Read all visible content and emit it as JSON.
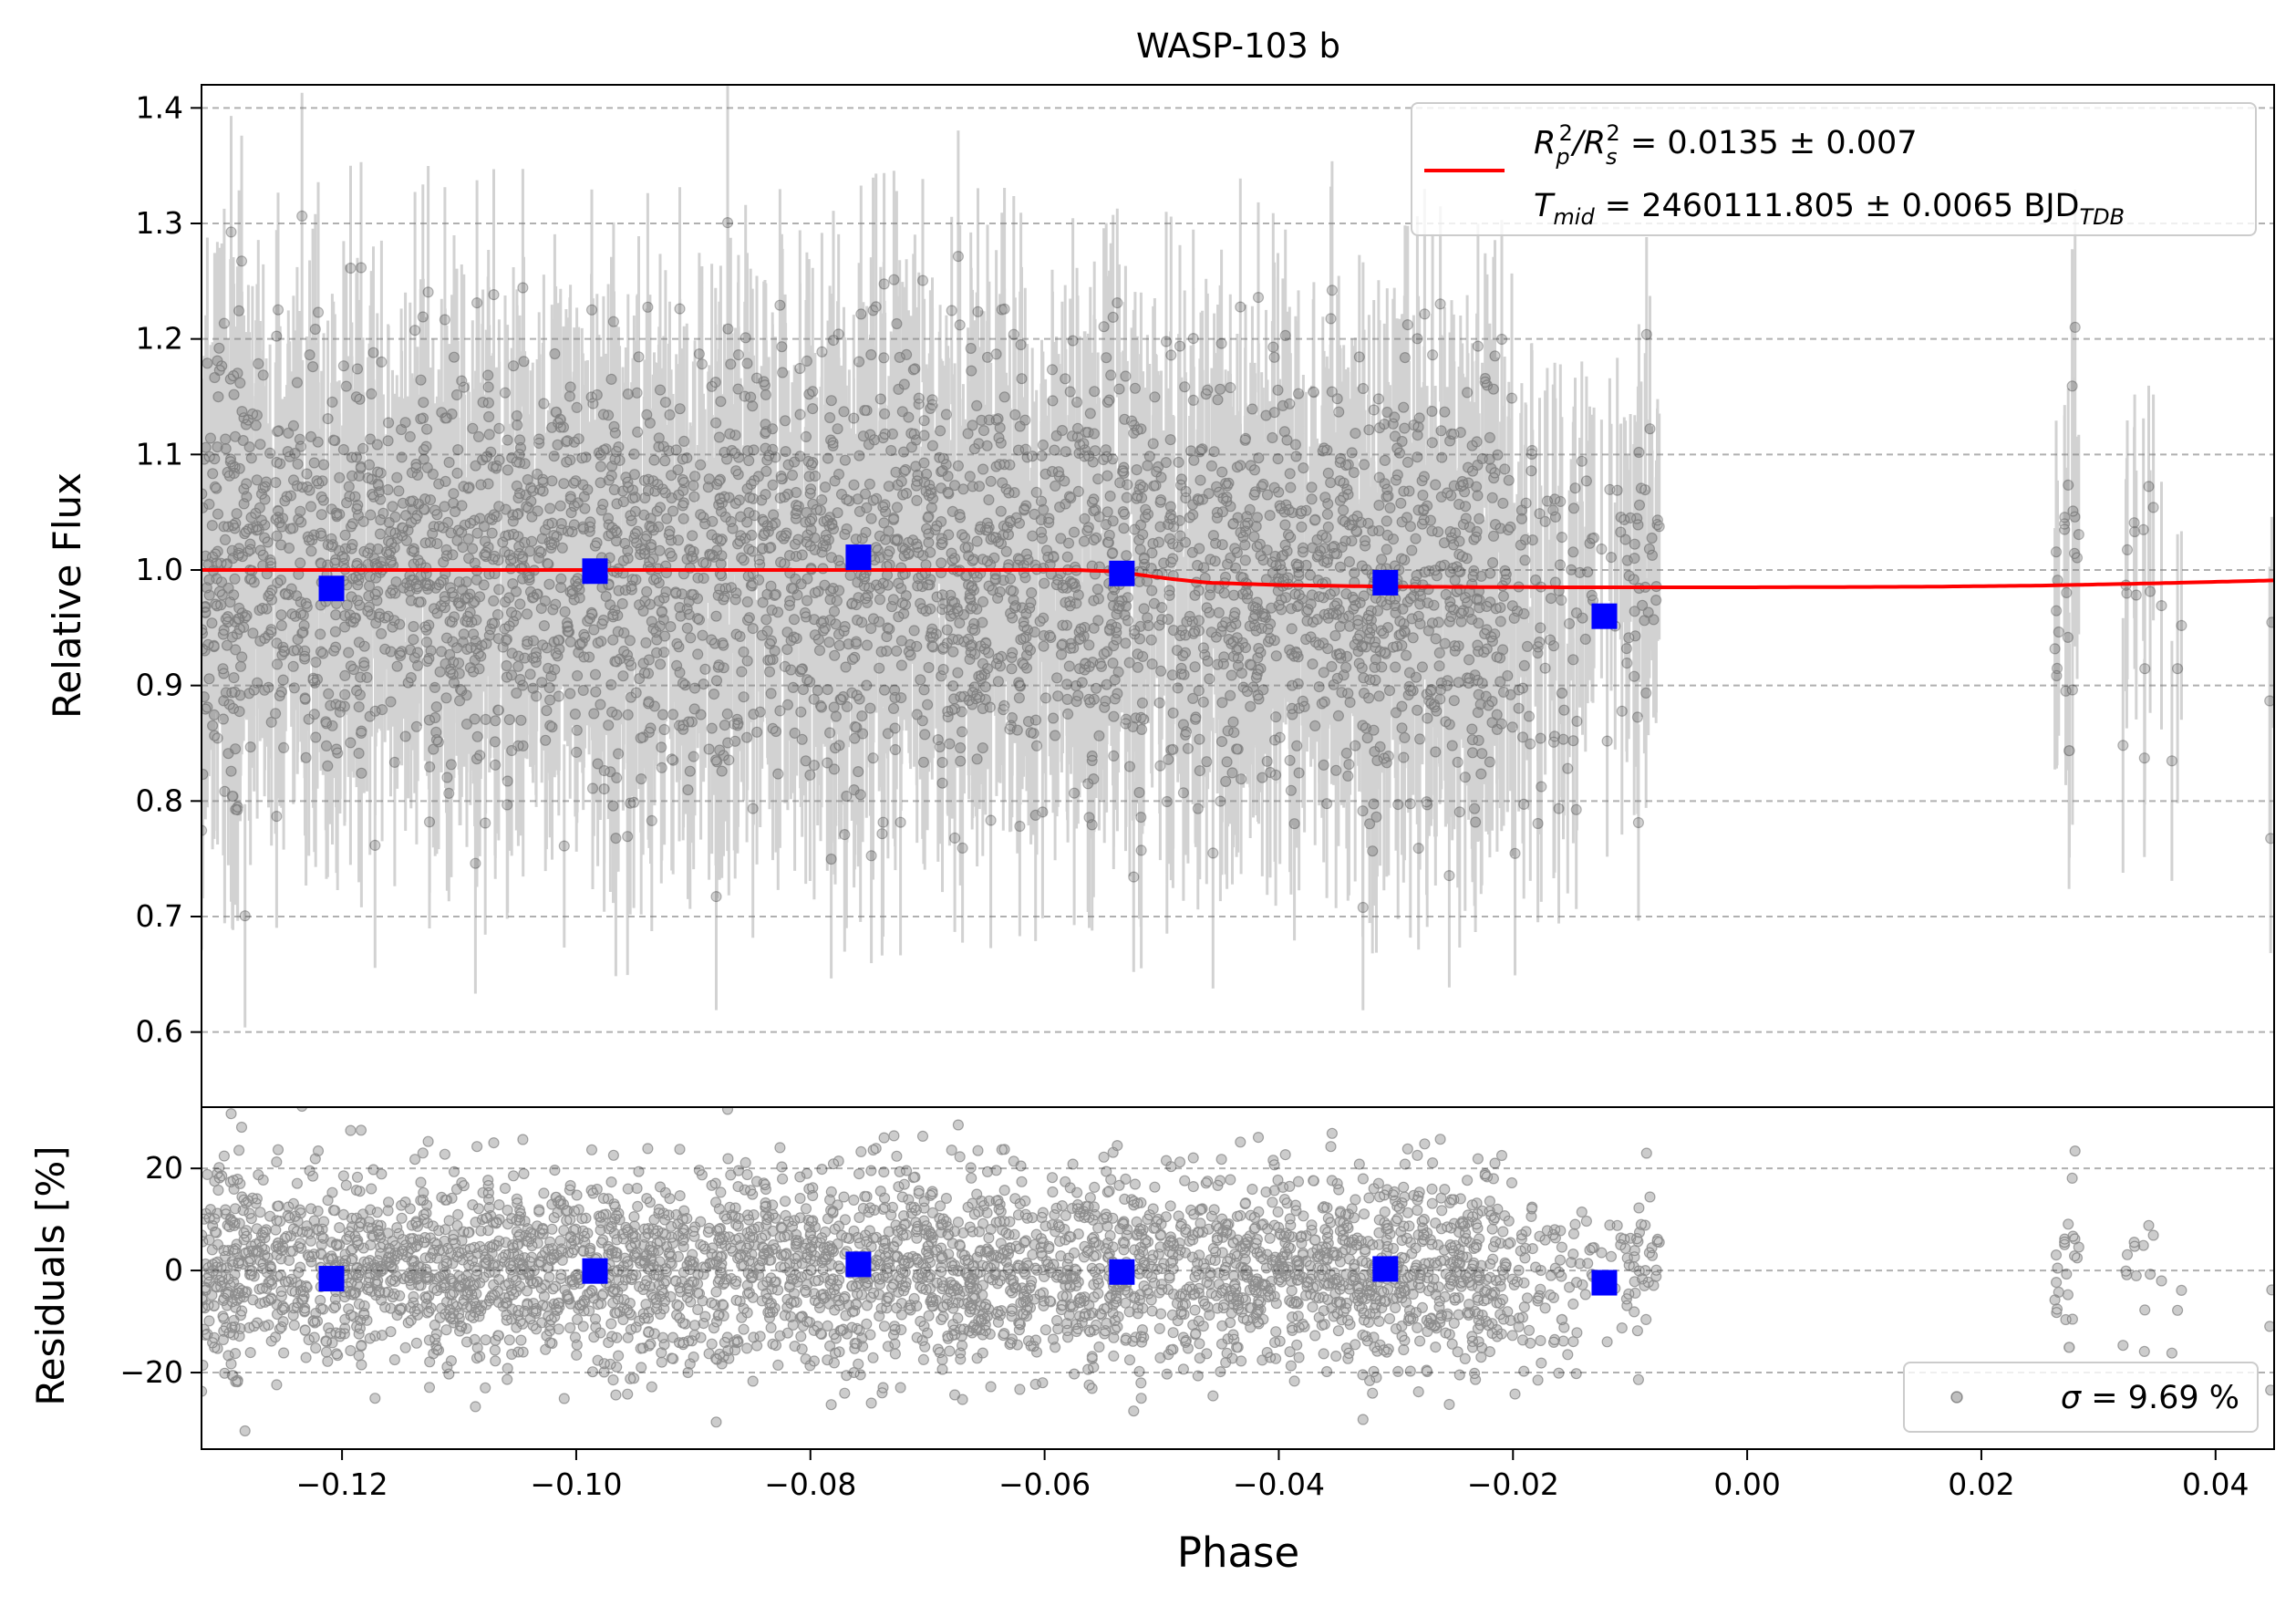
{
  "chart_data": {
    "type": "scatter",
    "title": "WASP-103 b",
    "xlabel": "Phase",
    "x_ticks": [
      -0.12,
      -0.1,
      -0.08,
      -0.06,
      -0.04,
      -0.02,
      0.0,
      0.02,
      0.04
    ],
    "x_tick_labels": [
      "−0.12",
      "−0.10",
      "−0.08",
      "−0.06",
      "−0.04",
      "−0.02",
      "0.00",
      "0.02",
      "0.04"
    ],
    "xlim": [
      -0.132,
      0.045
    ],
    "grid": "horizontal dashed",
    "panels": [
      {
        "id": "lightcurve",
        "ylabel": "Relative Flux",
        "ylim": [
          0.535,
          1.42
        ],
        "y_ticks": [
          0.6,
          0.7,
          0.8,
          0.9,
          1.0,
          1.1,
          1.2,
          1.3,
          1.4
        ],
        "y_tick_labels": [
          "0.6",
          "0.7",
          "0.8",
          "0.9",
          "1.0",
          "1.1",
          "1.2",
          "1.3",
          "1.4"
        ],
        "data_coverage": [
          {
            "start": -0.132,
            "end": -0.0205,
            "density": 2.4
          },
          {
            "start": -0.0205,
            "end": -0.0075,
            "density": 0.8
          },
          {
            "start": 0.0262,
            "end": 0.0285,
            "density": 0.8
          },
          {
            "start": 0.0318,
            "end": 0.0345,
            "density": 0.35
          },
          {
            "start": 0.0345,
            "end": 0.0375,
            "density": 0.12
          },
          {
            "start": 0.0445,
            "end": 0.045,
            "density": 0.5
          }
        ],
        "flux_scatter": 0.09,
        "errorbar_typical": 0.1,
        "model": {
          "name_label": {
            "main": "R",
            "parts": [
              "p",
              "2",
              "/R",
              "s",
              "2",
              " = 0.0135 ± 0.007"
            ]
          },
          "color": "#ff0000",
          "x": [
            -0.132,
            -0.0575,
            -0.0545,
            -0.052,
            -0.049,
            -0.046,
            -0.04,
            -0.03,
            -0.015,
            0.0,
            0.015,
            0.025,
            0.035,
            0.045
          ],
          "y": [
            1.0,
            1.0,
            0.999,
            0.996,
            0.992,
            0.989,
            0.987,
            0.9855,
            0.985,
            0.985,
            0.9855,
            0.9865,
            0.9885,
            0.991
          ]
        },
        "binned": {
          "color": "#0000ff",
          "x": [
            -0.1209,
            -0.0984,
            -0.0759,
            -0.0534,
            -0.0309,
            -0.0122
          ],
          "y": [
            0.984,
            0.999,
            1.011,
            0.997,
            0.989,
            0.96
          ]
        },
        "legend": {
          "position": "upper right",
          "line1": {
            "main": "R",
            "sub1": "p",
            "sup1": "2",
            "mid": "/R",
            "sub2": "s",
            "sup2": "2",
            "tail": " = 0.0135 ± 0.007"
          },
          "line2": {
            "main": "T",
            "sub": "mid",
            "mid": " = 2460111.805 ± 0.0065 BJD",
            "sub2": "TDB"
          }
        }
      },
      {
        "id": "residuals",
        "ylabel": "Residuals [%]",
        "ylim": [
          -35,
          32
        ],
        "y_ticks": [
          -20,
          0,
          20
        ],
        "y_tick_labels": [
          "−20",
          "0",
          "20"
        ],
        "binned": {
          "x": [
            -0.1209,
            -0.0984,
            -0.0759,
            -0.0534,
            -0.0309,
            -0.0122
          ],
          "y": [
            -1.6,
            -0.1,
            1.2,
            -0.3,
            0.3,
            -2.4
          ]
        },
        "legend": {
          "position": "lower right",
          "text_prefix": "σ",
          "text_value": " = 9.69 %"
        }
      }
    ]
  }
}
